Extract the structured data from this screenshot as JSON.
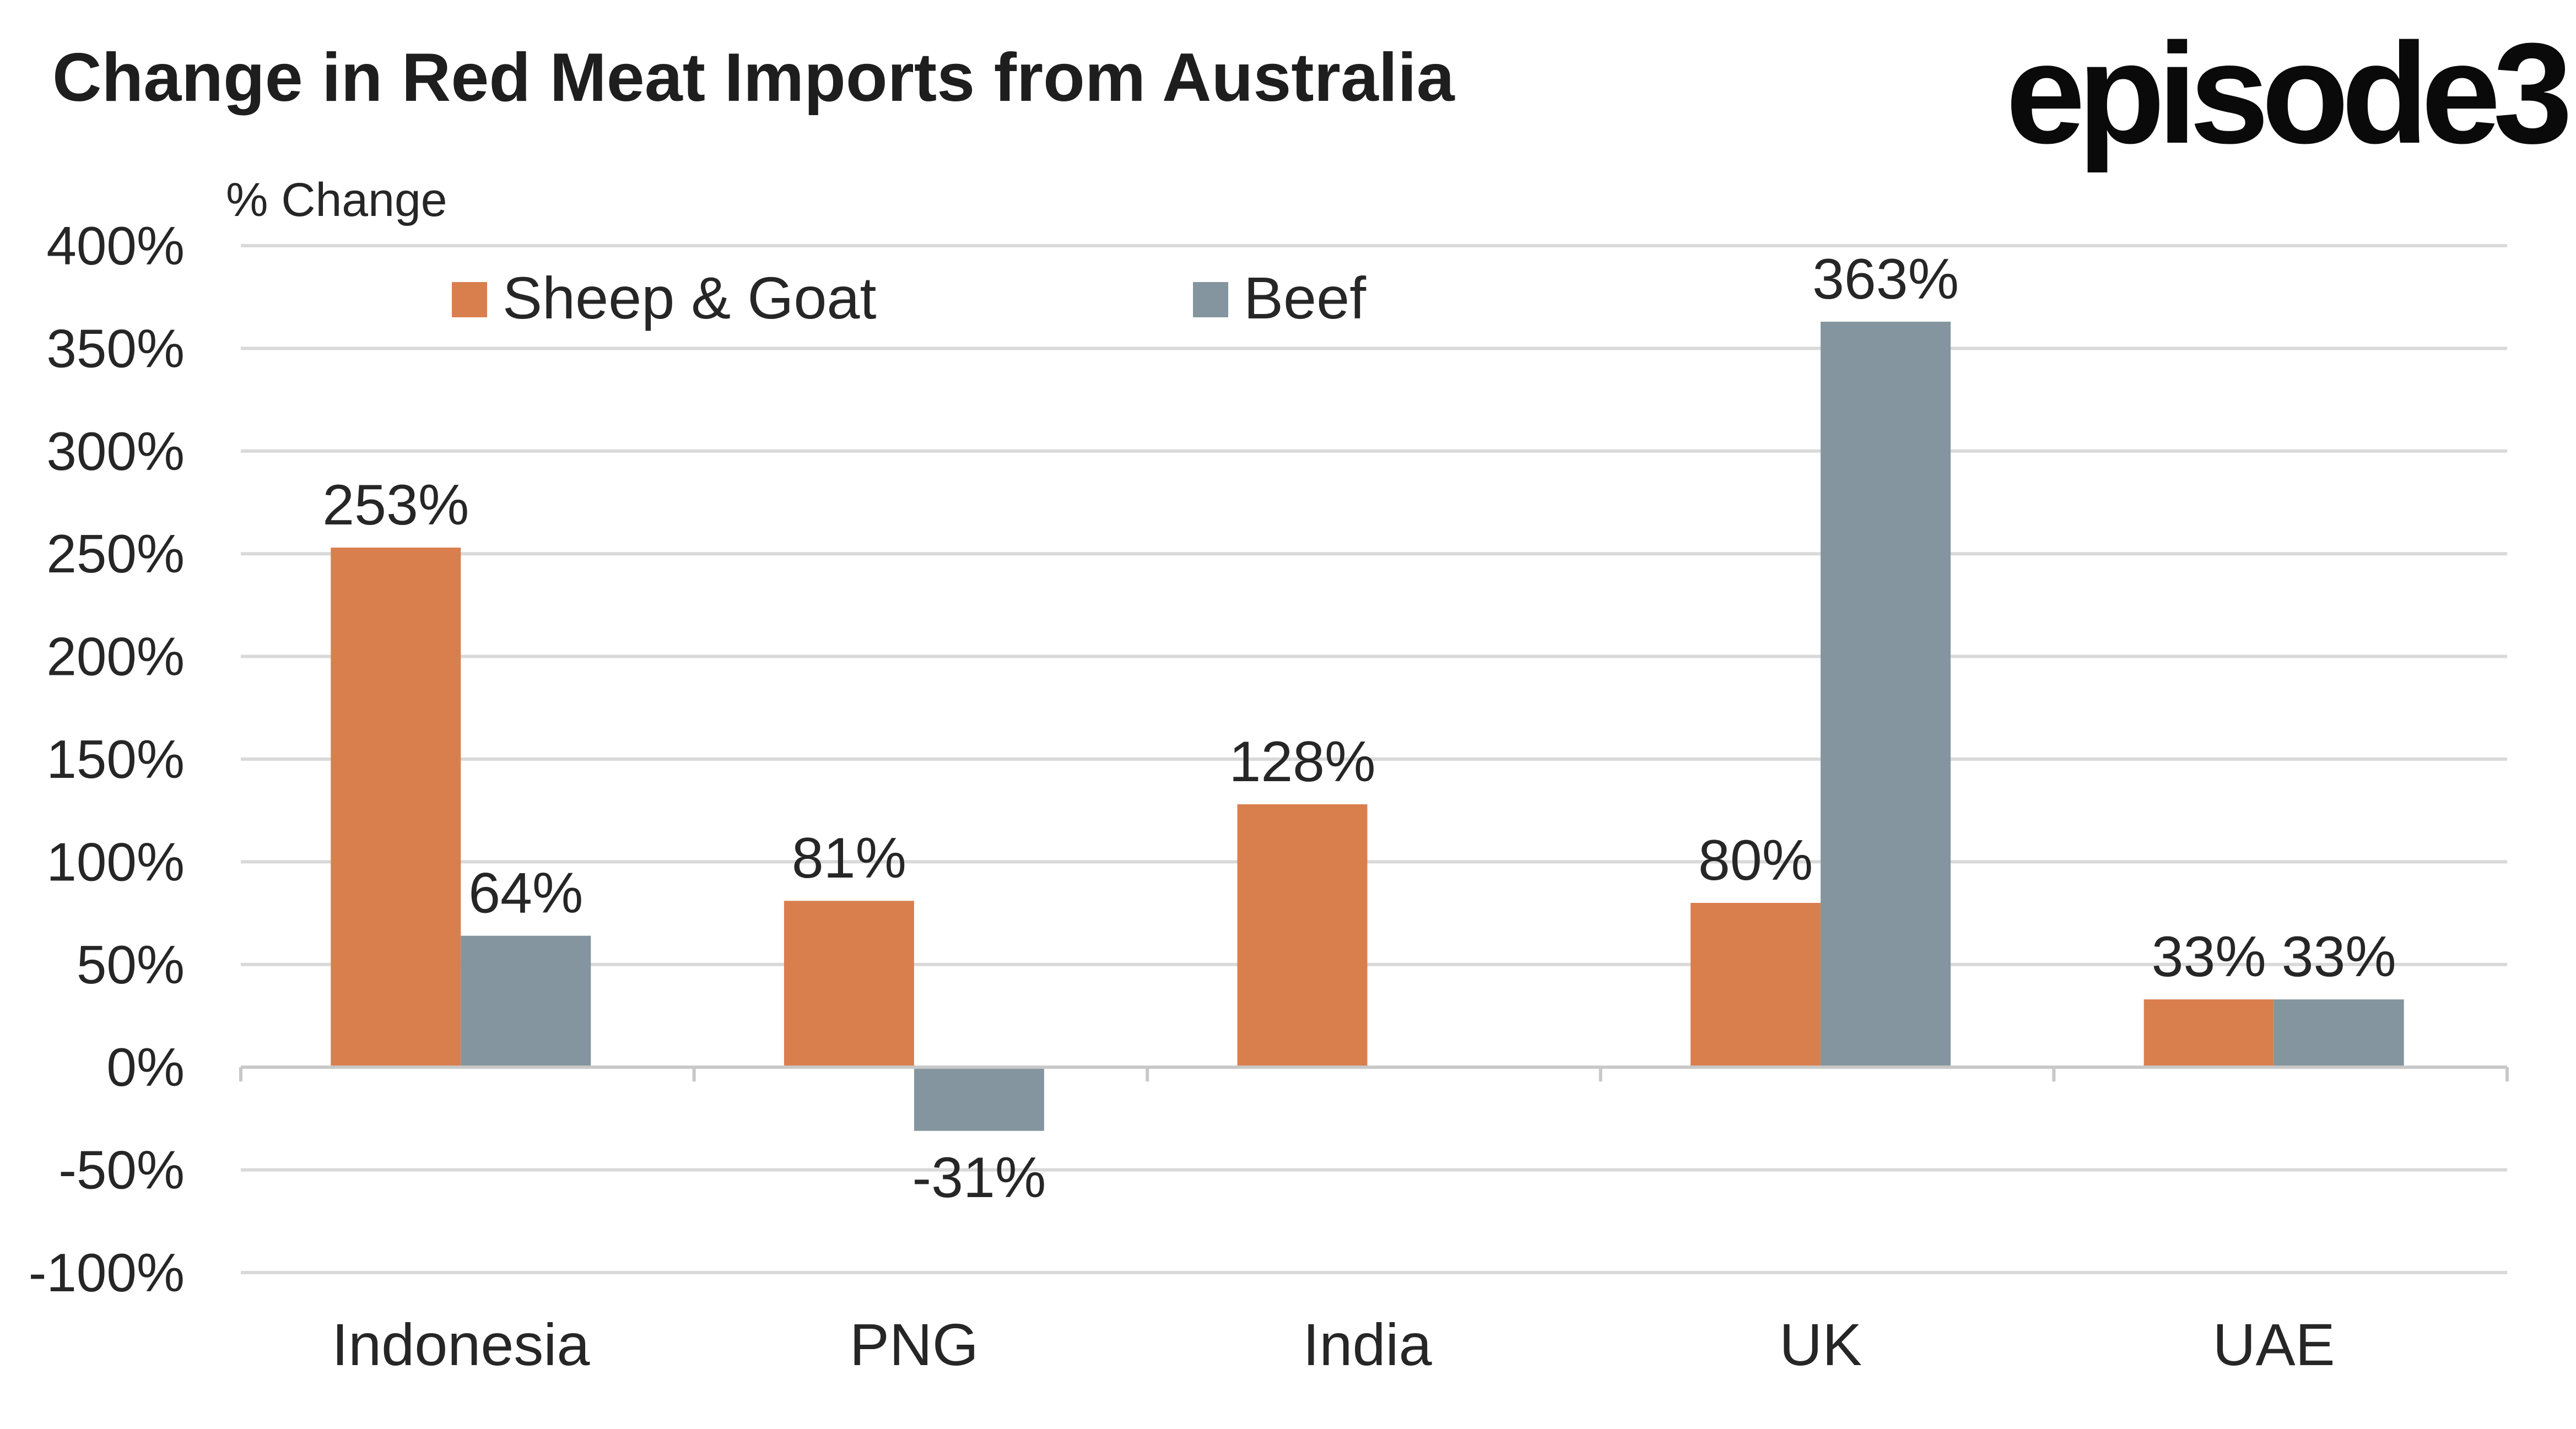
{
  "header": {
    "title": "Change in Red Meat Imports from Australia",
    "logo_text": "episode3"
  },
  "chart_data": {
    "type": "bar",
    "title": "Change in Red Meat Imports from Australia",
    "ylabel": "% Change",
    "xlabel": "",
    "categories": [
      "Indonesia",
      "PNG",
      "India",
      "UK",
      "UAE"
    ],
    "series": [
      {
        "name": "Sheep & Goat",
        "color": "#d97f4e",
        "values": [
          253,
          81,
          128,
          80,
          33
        ],
        "labels": [
          "253%",
          "81%",
          "128%",
          "80%",
          "33%"
        ]
      },
      {
        "name": "Beef",
        "color": "#84959f",
        "values": [
          64,
          -31,
          null,
          363,
          33
        ],
        "labels": [
          "64%",
          "-31%",
          "",
          "363%",
          "33%"
        ]
      }
    ],
    "ylim": [
      -100,
      400
    ],
    "yticks": [
      400,
      350,
      300,
      250,
      200,
      150,
      100,
      50,
      0,
      -50,
      -100
    ],
    "ytick_labels": [
      "400%",
      "350%",
      "300%",
      "250%",
      "200%",
      "150%",
      "100%",
      "50%",
      "0%",
      "-50%",
      "-100%"
    ],
    "grid": true,
    "legend_position": "top-left"
  }
}
